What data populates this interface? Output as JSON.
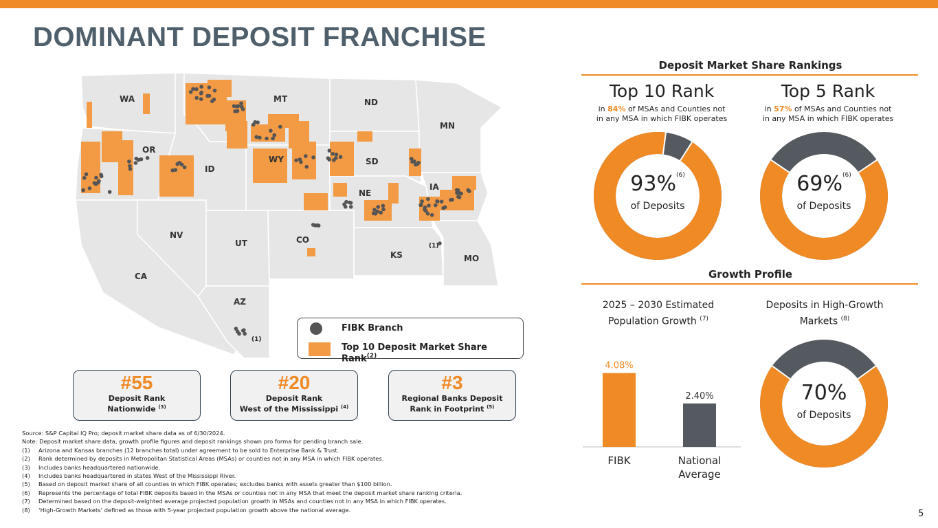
{
  "title": "DOMINANT DEPOSIT FRANCHISE",
  "colors": {
    "accent": "#f08a24",
    "gray": "#555a60",
    "map_land": "#e6e6e6",
    "map_highlight": "#f29a44",
    "branch": "#555555"
  },
  "map": {
    "states": [
      "WA",
      "OR",
      "ID",
      "MT",
      "ND",
      "MN",
      "SD",
      "WY",
      "NE",
      "IA",
      "NV",
      "UT",
      "CO",
      "CA",
      "KS",
      "MO",
      "AZ"
    ],
    "note_az": "(1)",
    "note_ks": "(1)"
  },
  "legend": {
    "branch": "FIBK Branch",
    "rank_label": "Top 10 Deposit Market Share Rank",
    "rank_note": "(2)"
  },
  "rank_boxes": [
    {
      "big": "#55",
      "line1": "Deposit Rank",
      "line2": "Nationwide",
      "note": "(3)"
    },
    {
      "big": "#20",
      "line1": "Deposit Rank",
      "line2": "West of the Mississippi",
      "note": "(4)"
    },
    {
      "big": "#3",
      "line1": "Regional Banks Deposit",
      "line2": "Rank in Footprint",
      "note": "(5)"
    }
  ],
  "market_share": {
    "header": "Deposit Market Share Rankings",
    "top10": {
      "title": "Top 10 Rank",
      "pre": "in ",
      "pct": "84%",
      "post": " of MSAs and Counties not",
      "line2": "in any MSA in which FIBK operates",
      "value": "93%",
      "note": "(6)",
      "label": "of Deposits",
      "fraction": 0.93
    },
    "top5": {
      "title": "Top 5 Rank",
      "pre": "in ",
      "pct": "57%",
      "post": " of MSAs and Counties not",
      "line2": "in any MSA in which FIBK operates",
      "value": "69%",
      "note": "(6)",
      "label": "of Deposits",
      "fraction": 0.69
    }
  },
  "growth": {
    "header": "Growth Profile",
    "pop_title1": "2025 – 2030 Estimated",
    "pop_title2": "Population Growth",
    "pop_note": "(7)",
    "hg_title1": "Deposits in High-Growth",
    "hg_title2": "Markets",
    "hg_note": "(8)",
    "hg_value": "70%",
    "hg_label": "of Deposits",
    "hg_fraction": 0.7
  },
  "chart_data": {
    "type": "bar",
    "title": "2025 – 2030 Estimated Population Growth",
    "categories": [
      "FIBK",
      "National Average"
    ],
    "category_lines": [
      [
        "FIBK"
      ],
      [
        "National",
        "Average"
      ]
    ],
    "values": [
      4.08,
      2.4
    ],
    "value_labels": [
      "4.08%",
      "2.40%"
    ],
    "colors": [
      "#f08a24",
      "#555a60"
    ],
    "ylim": [
      0,
      5
    ]
  },
  "footnotes": {
    "source": "Source: S&P Capital IQ Pro; deposit market share data as of 6/30/2024.",
    "note": "Note: Deposit market share data, growth profile figures and deposit rankings shown pro forma for pending branch sale.",
    "items": [
      {
        "n": "(1)",
        "t": "Arizona and Kansas branches (12 branches total) under agreement to be sold to Enterprise Bank & Trust."
      },
      {
        "n": "(2)",
        "t": "Rank determined by deposits in Metropolitan Statistical Areas (MSAs) or counties not in any MSA in which FIBK operates."
      },
      {
        "n": "(3)",
        "t": "Includes banks headquartered nationwide."
      },
      {
        "n": "(4)",
        "t": "Includes banks headquartered in states West of the Mississippi River."
      },
      {
        "n": "(5)",
        "t": "Based on deposit market share of all counties in which FIBK operates; excludes banks with assets greater than $100 billion."
      },
      {
        "n": "(6)",
        "t": "Represents the percentage of total FIBK deposits based in the MSAs or counties not in any MSA that meet the deposit market share ranking criteria."
      },
      {
        "n": "(7)",
        "t": "Determined based on the deposit-weighted average projected population growth in MSAs and counties not in any MSA in which FIBK operates."
      },
      {
        "n": "(8)",
        "t": "‘High-Growth Markets’ defined as those with 5-year projected population growth above the national average."
      }
    ]
  },
  "page_number": "5"
}
